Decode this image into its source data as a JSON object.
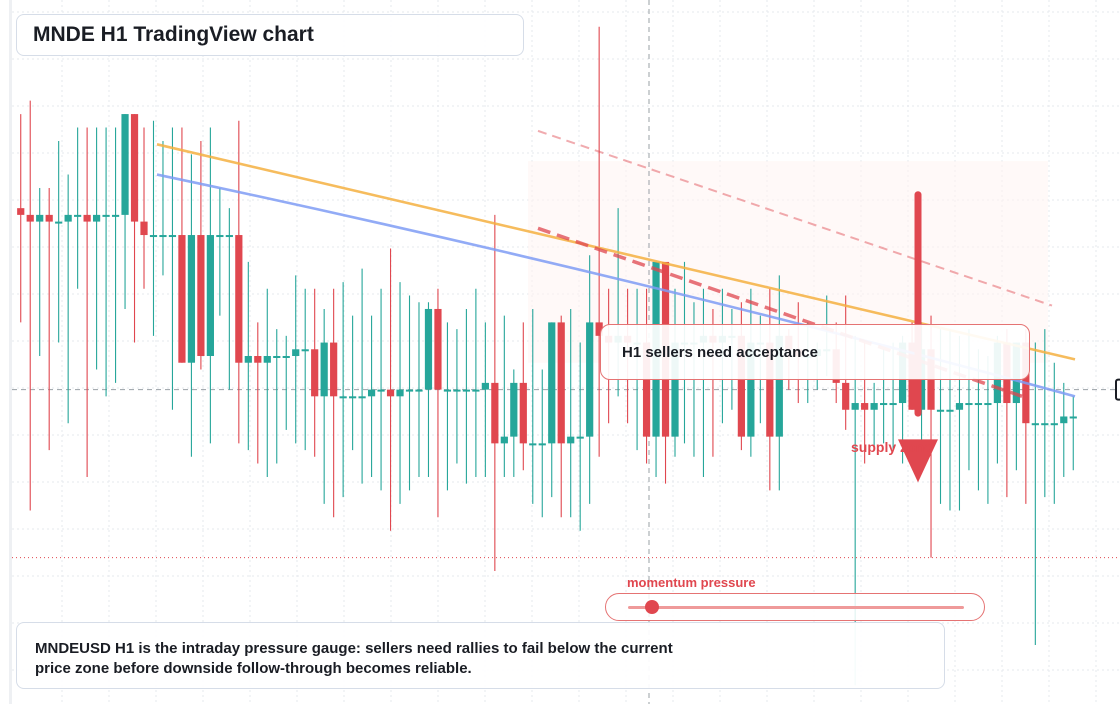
{
  "title": "MNDE H1 TradingView chart",
  "callout": "H1 sellers need acceptance",
  "zone_label": "supply zone",
  "momentum": {
    "label": "momentum pressure",
    "level": 0.07
  },
  "note": "MNDEUSD H1 is the intraday pressure gauge: sellers need rallies to fail below the current price zone before downside follow-through becomes reliable.",
  "colors": {
    "up": "#26a69a",
    "down": "#e0474f",
    "ma_fast": "#f5b041",
    "ma_slow": "#7f9cf5",
    "accent": "#e0474f"
  },
  "chart_data": {
    "type": "candlestick",
    "title": "MNDE H1 TradingView chart",
    "xlabel": "",
    "ylabel": "",
    "ylim": [
      0,
      100
    ],
    "grid": true,
    "last_price": 20,
    "crosshair_level": 45,
    "series": [
      {
        "name": "",
        "ohlc": [
          [
            72,
            71,
            86,
            55
          ],
          [
            71,
            70,
            88,
            27
          ],
          [
            70,
            71,
            75,
            50
          ],
          [
            71,
            70,
            75,
            36
          ],
          [
            70,
            70,
            82,
            52
          ],
          [
            70,
            71,
            77,
            40
          ],
          [
            71,
            71,
            84,
            60
          ],
          [
            71,
            70,
            84,
            32
          ],
          [
            70,
            71,
            84,
            48
          ],
          [
            71,
            71,
            84,
            44
          ],
          [
            71,
            71,
            84,
            46
          ],
          [
            71,
            86,
            86,
            57
          ],
          [
            86,
            70,
            86,
            52
          ],
          [
            70,
            68,
            84,
            60
          ],
          [
            68,
            68,
            85,
            53
          ],
          [
            68,
            68,
            82,
            62
          ],
          [
            68,
            68,
            84,
            42
          ],
          [
            68,
            49,
            84,
            49
          ],
          [
            49,
            68,
            80,
            35
          ],
          [
            68,
            50,
            82,
            48
          ],
          [
            50,
            68,
            84,
            37
          ],
          [
            68,
            68,
            75,
            56
          ],
          [
            68,
            68,
            72,
            45
          ],
          [
            68,
            49,
            85,
            37
          ],
          [
            49,
            50,
            64,
            36
          ],
          [
            50,
            49,
            55,
            34
          ],
          [
            49,
            50,
            60,
            32
          ],
          [
            50,
            50,
            54,
            34
          ],
          [
            50,
            50,
            53,
            39
          ],
          [
            50,
            51,
            62,
            37
          ],
          [
            51,
            51,
            60,
            36
          ],
          [
            51,
            44,
            60,
            35
          ],
          [
            44,
            52,
            57,
            28
          ],
          [
            52,
            44,
            60,
            26
          ],
          [
            44,
            44,
            61,
            29
          ],
          [
            44,
            44,
            56,
            36
          ],
          [
            44,
            44,
            63,
            31
          ],
          [
            44,
            45,
            56,
            32
          ],
          [
            45,
            45,
            60,
            30
          ],
          [
            45,
            44,
            66,
            24
          ],
          [
            44,
            45,
            61,
            28
          ],
          [
            45,
            45,
            59,
            30
          ],
          [
            45,
            45,
            58,
            32
          ],
          [
            45,
            57,
            58,
            32
          ],
          [
            57,
            45,
            60,
            26
          ],
          [
            45,
            45,
            55,
            30
          ],
          [
            45,
            45,
            54,
            34
          ],
          [
            45,
            45,
            57,
            31
          ],
          [
            45,
            45,
            60,
            32
          ],
          [
            45,
            46,
            55,
            32
          ],
          [
            46,
            37,
            71,
            18
          ],
          [
            37,
            38,
            56,
            32
          ],
          [
            38,
            46,
            48,
            32
          ],
          [
            46,
            37,
            55,
            33
          ],
          [
            37,
            37,
            57,
            28
          ],
          [
            37,
            37,
            48,
            26
          ],
          [
            37,
            55,
            55,
            29
          ],
          [
            55,
            37,
            56,
            26
          ],
          [
            37,
            38,
            57,
            26
          ],
          [
            38,
            38,
            52,
            24
          ],
          [
            38,
            55,
            65,
            28
          ],
          [
            55,
            53,
            99,
            35
          ],
          [
            53,
            52,
            60,
            40
          ],
          [
            52,
            53,
            72,
            44
          ],
          [
            53,
            52,
            60,
            40
          ],
          [
            52,
            52,
            60,
            36
          ],
          [
            52,
            38,
            60,
            34
          ],
          [
            38,
            64,
            64,
            32
          ],
          [
            64,
            38,
            60,
            31
          ],
          [
            38,
            52,
            60,
            35
          ],
          [
            52,
            52,
            64,
            37
          ],
          [
            52,
            52,
            58,
            35
          ],
          [
            52,
            53,
            60,
            32
          ],
          [
            53,
            52,
            57,
            35
          ],
          [
            52,
            53,
            60,
            40
          ],
          [
            53,
            53,
            57,
            42
          ],
          [
            53,
            38,
            58,
            36
          ],
          [
            38,
            52,
            60,
            35
          ],
          [
            52,
            52,
            56,
            40
          ],
          [
            52,
            38,
            60,
            30
          ],
          [
            38,
            53,
            62,
            30
          ],
          [
            53,
            51,
            54,
            45
          ],
          [
            51,
            50,
            58,
            43
          ],
          [
            50,
            50,
            55,
            43
          ],
          [
            50,
            51,
            52,
            45
          ],
          [
            51,
            51,
            59,
            47
          ],
          [
            51,
            46,
            55,
            43
          ],
          [
            46,
            42,
            59,
            39
          ],
          [
            42,
            43,
            53,
            1
          ],
          [
            43,
            42,
            52,
            34
          ],
          [
            42,
            43,
            46,
            36
          ],
          [
            43,
            43,
            51,
            37
          ],
          [
            43,
            43,
            52,
            36
          ],
          [
            43,
            52,
            53,
            34
          ],
          [
            52,
            42,
            55,
            42
          ],
          [
            42,
            51,
            55,
            37
          ],
          [
            51,
            42,
            56,
            20
          ],
          [
            42,
            42,
            54,
            28
          ],
          [
            42,
            42,
            54,
            27
          ],
          [
            42,
            43,
            53,
            27
          ],
          [
            43,
            43,
            54,
            33
          ],
          [
            43,
            43,
            51,
            30
          ],
          [
            43,
            43,
            50,
            28
          ],
          [
            43,
            52,
            53,
            34
          ],
          [
            52,
            43,
            54,
            29
          ],
          [
            43,
            52,
            52,
            33
          ],
          [
            52,
            40,
            54,
            28
          ],
          [
            40,
            40,
            52,
            7
          ],
          [
            40,
            40,
            54,
            29
          ],
          [
            40,
            40,
            49,
            28
          ],
          [
            40,
            41,
            46,
            32
          ],
          [
            41,
            41,
            44,
            33
          ]
        ]
      }
    ],
    "moving_averages": [
      {
        "name": "",
        "color": "#f5b041",
        "from": 81.5,
        "to": 49.5
      },
      {
        "name": "",
        "color": "#7f9cf5",
        "from": 77,
        "to": 44
      }
    ]
  }
}
